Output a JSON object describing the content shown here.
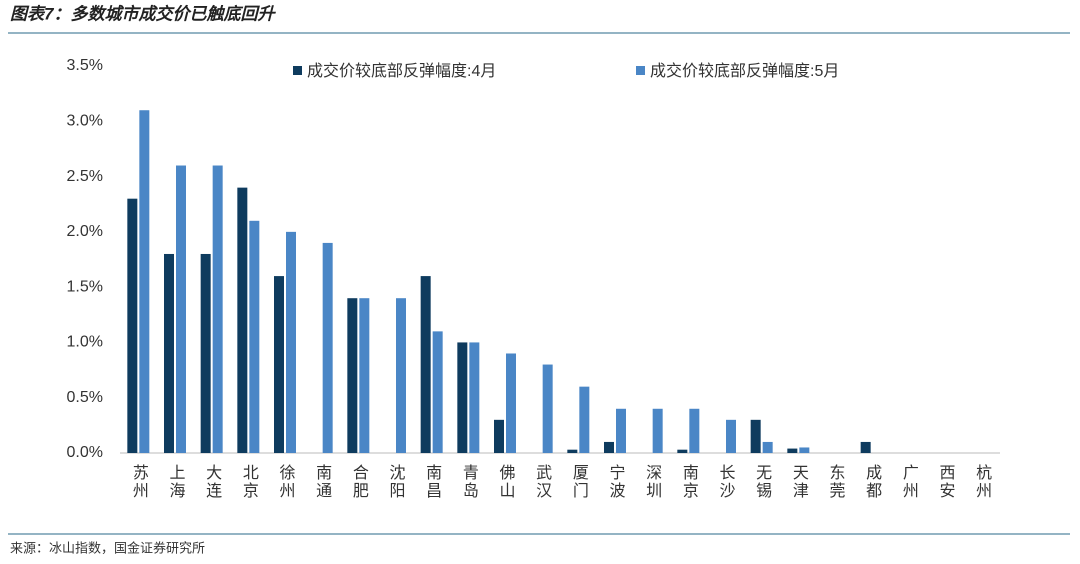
{
  "chart_data": {
    "type": "bar",
    "title": "图表7：多数城市成交价已触底回升",
    "source": "来源：冰山指数，国金证券研究所",
    "categories": [
      "苏州",
      "上海",
      "大连",
      "北京",
      "徐州",
      "南通",
      "合肥",
      "沈阳",
      "南昌",
      "青岛",
      "佛山",
      "武汉",
      "厦门",
      "宁波",
      "深圳",
      "南京",
      "长沙",
      "无锡",
      "天津",
      "东莞",
      "成都",
      "广州",
      "西安",
      "杭州"
    ],
    "series": [
      {
        "name": "成交价较底部反弹幅度:4月",
        "color": "#0e3b5e",
        "values": [
          2.3,
          1.8,
          1.8,
          2.4,
          1.6,
          0,
          1.4,
          0,
          1.6,
          1.0,
          0.3,
          0,
          0.03,
          0.1,
          0,
          0.03,
          0,
          0.3,
          0.04,
          0,
          0.1,
          0,
          0,
          0
        ]
      },
      {
        "name": "成交价较底部反弹幅度:5月",
        "color": "#4a86c6",
        "values": [
          3.1,
          2.6,
          2.6,
          2.1,
          2.0,
          1.9,
          1.4,
          1.4,
          1.1,
          1.0,
          0.9,
          0.8,
          0.6,
          0.4,
          0.4,
          0.4,
          0.3,
          0.1,
          0.05,
          0,
          0,
          0,
          0,
          0
        ]
      }
    ],
    "ylim": [
      0,
      3.5
    ],
    "yticks": [
      {
        "value": 0,
        "label": "0.0%"
      },
      {
        "value": 0.5,
        "label": "0.5%"
      },
      {
        "value": 1.0,
        "label": "1.0%"
      },
      {
        "value": 1.5,
        "label": "1.5%"
      },
      {
        "value": 2.0,
        "label": "2.0%"
      },
      {
        "value": 2.5,
        "label": "2.5%"
      },
      {
        "value": 3.0,
        "label": "3.0%"
      },
      {
        "value": 3.5,
        "label": "3.5%"
      }
    ],
    "grid": false,
    "legend": "top"
  }
}
